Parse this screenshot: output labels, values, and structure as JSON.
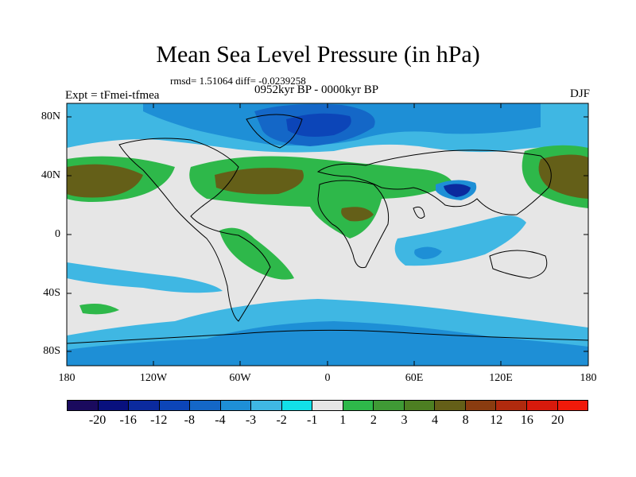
{
  "title": "Mean Sea Level Pressure (in hPa)",
  "stats": "rmsd= 1.51064 diff= -0.0239258",
  "experiment": "Expt = tFmei-tfmea",
  "period": "0952kyr BP - 0000kyr BP",
  "season": "DJF",
  "lat_labels": [
    "80N",
    "40N",
    "0",
    "40S",
    "80S"
  ],
  "lon_labels": [
    "180",
    "120W",
    "60W",
    "0",
    "60E",
    "120E",
    "180"
  ],
  "colorbar": {
    "levels": [
      "-20",
      "-16",
      "-12",
      "-8",
      "-4",
      "-3",
      "-2",
      "-1",
      "1",
      "2",
      "3",
      "4",
      "8",
      "12",
      "16",
      "20"
    ],
    "colors": [
      "#1a0a5e",
      "#08107e",
      "#0b2a9e",
      "#0c45b8",
      "#1467c7",
      "#1e8fd6",
      "#3fb7e3",
      "#12e0e8",
      "#e6e6e6",
      "#2eb84a",
      "#3f9a35",
      "#4d7f22",
      "#645f18",
      "#8a3c10",
      "#b02a0e",
      "#d81a0c",
      "#f01a0a"
    ]
  }
}
